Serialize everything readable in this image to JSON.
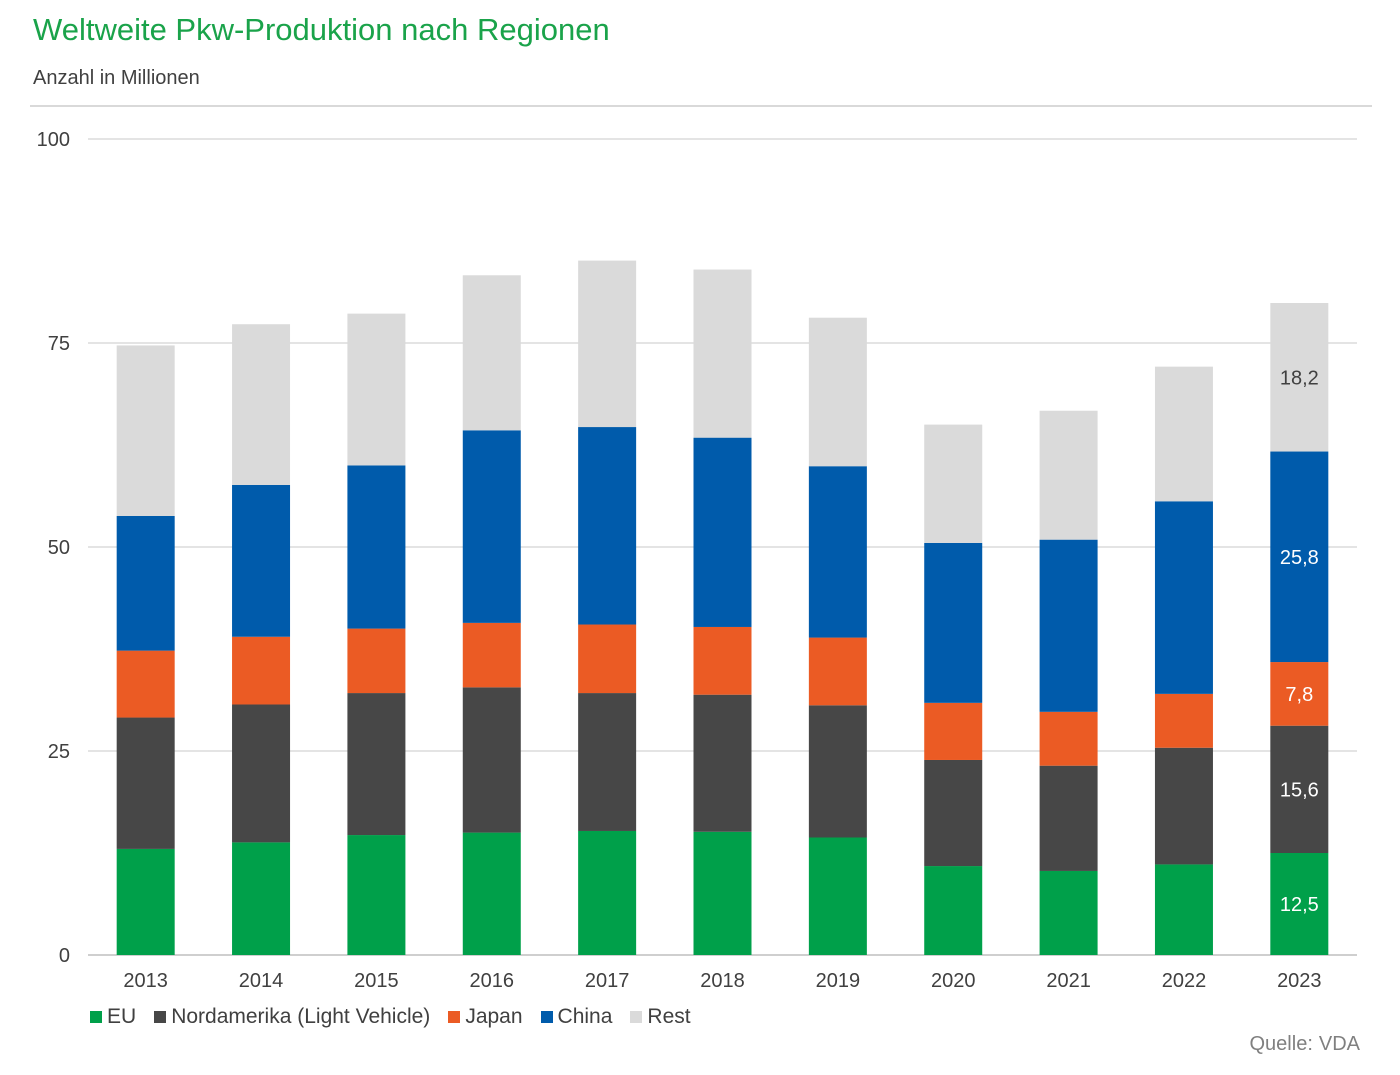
{
  "chart_data": {
    "type": "bar",
    "stacked": true,
    "title": "Weltweite Pkw-Produktion nach Regionen",
    "subtitle": "Anzahl in Millionen",
    "xlabel": "",
    "ylabel": "",
    "ylim": [
      0,
      100
    ],
    "yticks": [
      "0",
      "25",
      "50",
      "75",
      "100"
    ],
    "grid": true,
    "legend_position": "bottom-left",
    "categories": [
      "2013",
      "2014",
      "2015",
      "2016",
      "2017",
      "2018",
      "2019",
      "2020",
      "2021",
      "2022",
      "2023"
    ],
    "series": [
      {
        "name": "EU",
        "color": "#00a04a",
        "values": [
          13.0,
          13.8,
          14.7,
          15.0,
          15.2,
          15.1,
          14.4,
          10.9,
          10.3,
          11.1,
          12.5
        ]
      },
      {
        "name": "Nordamerika (Light Vehicle)",
        "color": "#474747",
        "values": [
          16.1,
          16.9,
          17.4,
          17.8,
          16.9,
          16.8,
          16.2,
          13.0,
          12.9,
          14.3,
          15.6
        ]
      },
      {
        "name": "Japan",
        "color": "#eb5b24",
        "values": [
          8.2,
          8.3,
          7.9,
          7.9,
          8.4,
          8.3,
          8.3,
          7.0,
          6.6,
          6.6,
          7.8
        ]
      },
      {
        "name": "China",
        "color": "#005bab",
        "values": [
          16.5,
          18.6,
          20.0,
          23.6,
          24.2,
          23.2,
          21.0,
          19.6,
          21.1,
          23.6,
          25.8
        ]
      },
      {
        "name": "Rest",
        "color": "#dadada",
        "values": [
          20.9,
          19.7,
          18.6,
          19.0,
          20.4,
          20.6,
          18.2,
          14.5,
          15.8,
          16.5,
          18.2
        ]
      }
    ],
    "data_labels": [
      {
        "category": "2023",
        "series": "EU",
        "text": "12,5"
      },
      {
        "category": "2023",
        "series": "Nordamerika (Light Vehicle)",
        "text": "15,6"
      },
      {
        "category": "2023",
        "series": "Japan",
        "text": "7,8"
      },
      {
        "category": "2023",
        "series": "China",
        "text": "25,8"
      },
      {
        "category": "2023",
        "series": "Rest",
        "text": "18,2"
      }
    ],
    "source_label": "Quelle:",
    "source_value": "VDA"
  }
}
